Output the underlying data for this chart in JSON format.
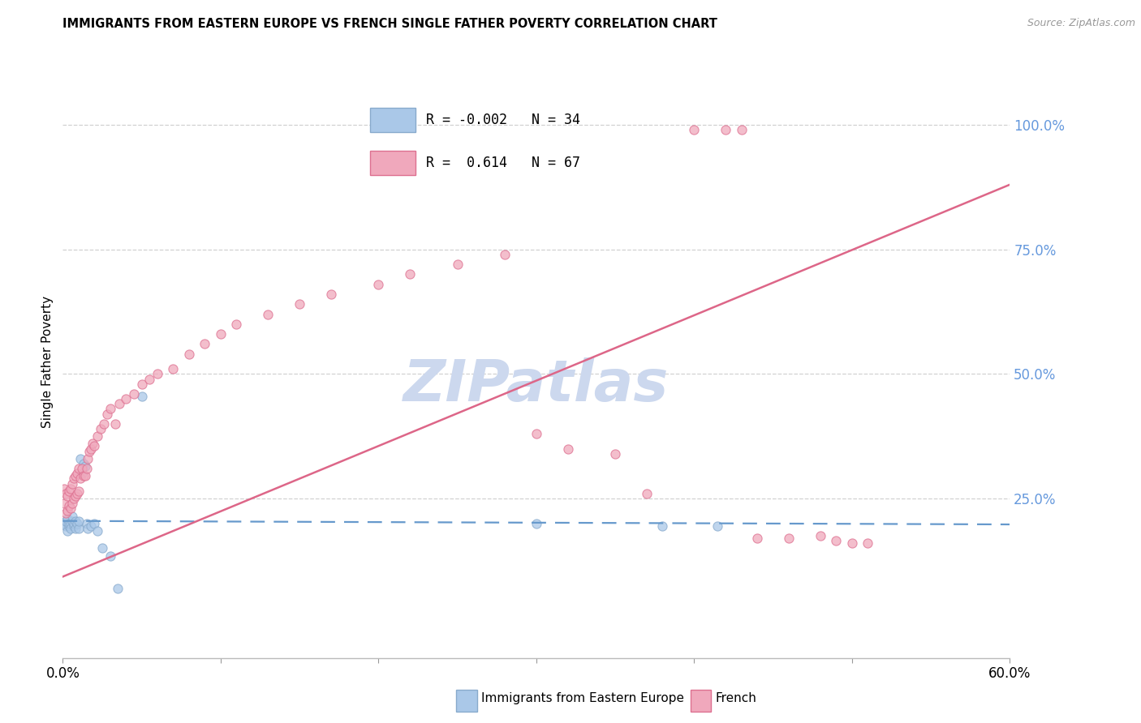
{
  "title": "IMMIGRANTS FROM EASTERN EUROPE VS FRENCH SINGLE FATHER POVERTY CORRELATION CHART",
  "source": "Source: ZipAtlas.com",
  "ylabel": "Single Father Poverty",
  "right_yticks": [
    "100.0%",
    "75.0%",
    "50.0%",
    "25.0%"
  ],
  "right_ytick_vals": [
    1.0,
    0.75,
    0.5,
    0.25
  ],
  "blue_scatter_x": [
    0.001,
    0.002,
    0.002,
    0.003,
    0.003,
    0.004,
    0.004,
    0.005,
    0.005,
    0.006,
    0.006,
    0.007,
    0.007,
    0.008,
    0.008,
    0.009,
    0.01,
    0.01,
    0.011,
    0.012,
    0.013,
    0.014,
    0.015,
    0.016,
    0.018,
    0.02,
    0.022,
    0.025,
    0.03,
    0.035,
    0.3,
    0.38,
    0.415,
    0.05
  ],
  "blue_scatter_y": [
    0.2,
    0.195,
    0.205,
    0.185,
    0.21,
    0.195,
    0.2,
    0.2,
    0.19,
    0.205,
    0.215,
    0.195,
    0.2,
    0.19,
    0.205,
    0.2,
    0.19,
    0.205,
    0.33,
    0.3,
    0.32,
    0.315,
    0.2,
    0.19,
    0.195,
    0.2,
    0.185,
    0.15,
    0.135,
    0.07,
    0.2,
    0.195,
    0.195,
    0.455
  ],
  "pink_scatter_x": [
    0.001,
    0.001,
    0.002,
    0.002,
    0.003,
    0.003,
    0.004,
    0.004,
    0.005,
    0.005,
    0.006,
    0.006,
    0.007,
    0.007,
    0.008,
    0.008,
    0.009,
    0.009,
    0.01,
    0.01,
    0.011,
    0.012,
    0.013,
    0.014,
    0.015,
    0.016,
    0.017,
    0.018,
    0.019,
    0.02,
    0.022,
    0.024,
    0.026,
    0.028,
    0.03,
    0.033,
    0.036,
    0.04,
    0.045,
    0.05,
    0.055,
    0.06,
    0.07,
    0.08,
    0.09,
    0.1,
    0.11,
    0.13,
    0.15,
    0.17,
    0.2,
    0.22,
    0.25,
    0.28,
    0.3,
    0.32,
    0.35,
    0.37,
    0.4,
    0.42,
    0.43,
    0.44,
    0.46,
    0.48,
    0.49,
    0.5,
    0.51
  ],
  "pink_scatter_y": [
    0.24,
    0.27,
    0.22,
    0.26,
    0.225,
    0.255,
    0.235,
    0.265,
    0.23,
    0.27,
    0.24,
    0.28,
    0.25,
    0.29,
    0.255,
    0.295,
    0.26,
    0.3,
    0.265,
    0.31,
    0.29,
    0.31,
    0.295,
    0.295,
    0.31,
    0.33,
    0.345,
    0.35,
    0.36,
    0.355,
    0.375,
    0.39,
    0.4,
    0.42,
    0.43,
    0.4,
    0.44,
    0.45,
    0.46,
    0.48,
    0.49,
    0.5,
    0.51,
    0.54,
    0.56,
    0.58,
    0.6,
    0.62,
    0.64,
    0.66,
    0.68,
    0.7,
    0.72,
    0.74,
    0.38,
    0.35,
    0.34,
    0.26,
    0.99,
    0.99,
    0.99,
    0.17,
    0.17,
    0.175,
    0.165,
    0.16,
    0.16
  ],
  "blue_line_x": [
    0.0,
    0.6
  ],
  "blue_line_y": [
    0.205,
    0.198
  ],
  "pink_line_x": [
    -0.01,
    0.6
  ],
  "pink_line_y": [
    0.08,
    0.88
  ],
  "xlim": [
    0.0,
    0.6
  ],
  "ylim": [
    -0.07,
    1.12
  ],
  "scatter_size": 65,
  "scatter_alpha": 0.75,
  "blue_color": "#aac8e8",
  "blue_edge_color": "#88aacc",
  "pink_color": "#f0a8bc",
  "pink_edge_color": "#dd7090",
  "blue_line_color": "#6699cc",
  "blue_line_dash": [
    8,
    5
  ],
  "pink_line_color": "#dd6688",
  "grid_color": "#cccccc",
  "right_axis_color": "#6699dd",
  "watermark": "ZIPatlas",
  "watermark_color": "#ccd8ee",
  "watermark_fontsize": 52,
  "background_color": "#ffffff",
  "legend_R_blue": "R = -0.002",
  "legend_N_blue": "N = 34",
  "legend_R_pink": "R =  0.614",
  "legend_N_pink": "N = 67",
  "legend_label_blue": "Immigrants from Eastern Europe",
  "legend_label_pink": "French"
}
